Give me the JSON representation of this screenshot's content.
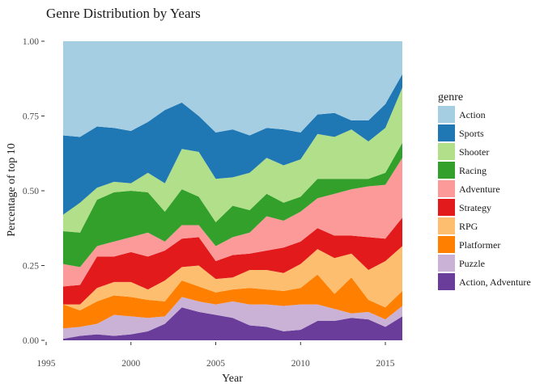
{
  "chart_data": {
    "type": "area",
    "stacked": true,
    "normalized": true,
    "title": "Genre Distribution by Years",
    "xlabel": "Year",
    "ylabel": "Percentage of top 10",
    "xlim": [
      1995,
      2016
    ],
    "ylim": [
      0,
      1
    ],
    "x_ticks": [
      1995,
      2000,
      2005,
      2010,
      2015
    ],
    "y_ticks": [
      0,
      0.25,
      0.5,
      0.75,
      1
    ],
    "y_tick_labels": [
      "0.00",
      "0.25",
      "0.50",
      "0.75",
      "1.00"
    ],
    "grid": false,
    "legend_position": "right",
    "legend_title": "genre",
    "x": [
      1996,
      1997,
      1998,
      1999,
      2000,
      2001,
      2002,
      2003,
      2004,
      2005,
      2006,
      2007,
      2008,
      2009,
      2010,
      2011,
      2012,
      2013,
      2014,
      2015,
      2016
    ],
    "series": [
      {
        "name": "Action, Adventure",
        "color": "#6A3D9A",
        "values": [
          0.005,
          0.015,
          0.02,
          0.015,
          0.02,
          0.03,
          0.055,
          0.11,
          0.095,
          0.085,
          0.075,
          0.05,
          0.045,
          0.03,
          0.035,
          0.065,
          0.065,
          0.075,
          0.07,
          0.045,
          0.08
        ]
      },
      {
        "name": "Puzzle",
        "color": "#CAB2D6",
        "values": [
          0.035,
          0.03,
          0.035,
          0.07,
          0.06,
          0.045,
          0.025,
          0.035,
          0.035,
          0.035,
          0.055,
          0.07,
          0.075,
          0.085,
          0.085,
          0.055,
          0.04,
          0.015,
          0.025,
          0.025,
          0.035
        ]
      },
      {
        "name": "Platformer",
        "color": "#FF7F00",
        "values": [
          0.08,
          0.055,
          0.075,
          0.065,
          0.065,
          0.06,
          0.05,
          0.055,
          0.05,
          0.04,
          0.04,
          0.055,
          0.05,
          0.05,
          0.055,
          0.1,
          0.05,
          0.12,
          0.04,
          0.04,
          0.05
        ]
      },
      {
        "name": "RPG",
        "color": "#FDBF6F",
        "values": [
          0,
          0.02,
          0.045,
          0.045,
          0.05,
          0.035,
          0.07,
          0.045,
          0.07,
          0.045,
          0.04,
          0.06,
          0.065,
          0.06,
          0.08,
          0.085,
          0.12,
          0.08,
          0.1,
          0.155,
          0.15
        ]
      },
      {
        "name": "Strategy",
        "color": "#E31A1C",
        "values": [
          0.06,
          0.065,
          0.105,
          0.085,
          0.1,
          0.11,
          0.1,
          0.095,
          0.095,
          0.06,
          0.075,
          0.055,
          0.065,
          0.085,
          0.075,
          0.07,
          0.075,
          0.06,
          0.11,
          0.075,
          0.095
        ]
      },
      {
        "name": "Adventure",
        "color": "#FB9A99",
        "values": [
          0.075,
          0.06,
          0.035,
          0.05,
          0.05,
          0.08,
          0.03,
          0.045,
          0.04,
          0.05,
          0.06,
          0.07,
          0.115,
          0.09,
          0.1,
          0.1,
          0.14,
          0.155,
          0.17,
          0.18,
          0.2
        ]
      },
      {
        "name": "Racing",
        "color": "#33A02C",
        "values": [
          0.11,
          0.115,
          0.155,
          0.165,
          0.155,
          0.135,
          0.1,
          0.12,
          0.095,
          0.08,
          0.105,
          0.075,
          0.075,
          0.06,
          0.05,
          0.065,
          0.05,
          0.035,
          0.025,
          0.04,
          0.05
        ]
      },
      {
        "name": "Shooter",
        "color": "#B2DF8A",
        "values": [
          0.055,
          0.1,
          0.04,
          0.035,
          0.025,
          0.065,
          0.095,
          0.135,
          0.15,
          0.145,
          0.095,
          0.125,
          0.12,
          0.125,
          0.125,
          0.15,
          0.14,
          0.165,
          0.125,
          0.15,
          0.185
        ]
      },
      {
        "name": "Sports",
        "color": "#1F78B4",
        "values": [
          0.265,
          0.22,
          0.205,
          0.18,
          0.175,
          0.17,
          0.245,
          0.155,
          0.12,
          0.155,
          0.16,
          0.125,
          0.1,
          0.12,
          0.09,
          0.065,
          0.08,
          0.03,
          0.07,
          0.08,
          0.045
        ]
      },
      {
        "name": "Action",
        "color": "#A6CEE3",
        "values": [
          0.315,
          0.32,
          0.285,
          0.29,
          0.3,
          0.27,
          0.23,
          0.205,
          0.25,
          0.305,
          0.295,
          0.315,
          0.29,
          0.295,
          0.305,
          0.245,
          0.24,
          0.265,
          0.265,
          0.21,
          0.11
        ]
      }
    ],
    "legend_order": [
      "Action",
      "Sports",
      "Shooter",
      "Racing",
      "Adventure",
      "Strategy",
      "RPG",
      "Platformer",
      "Puzzle",
      "Action, Adventure"
    ]
  }
}
